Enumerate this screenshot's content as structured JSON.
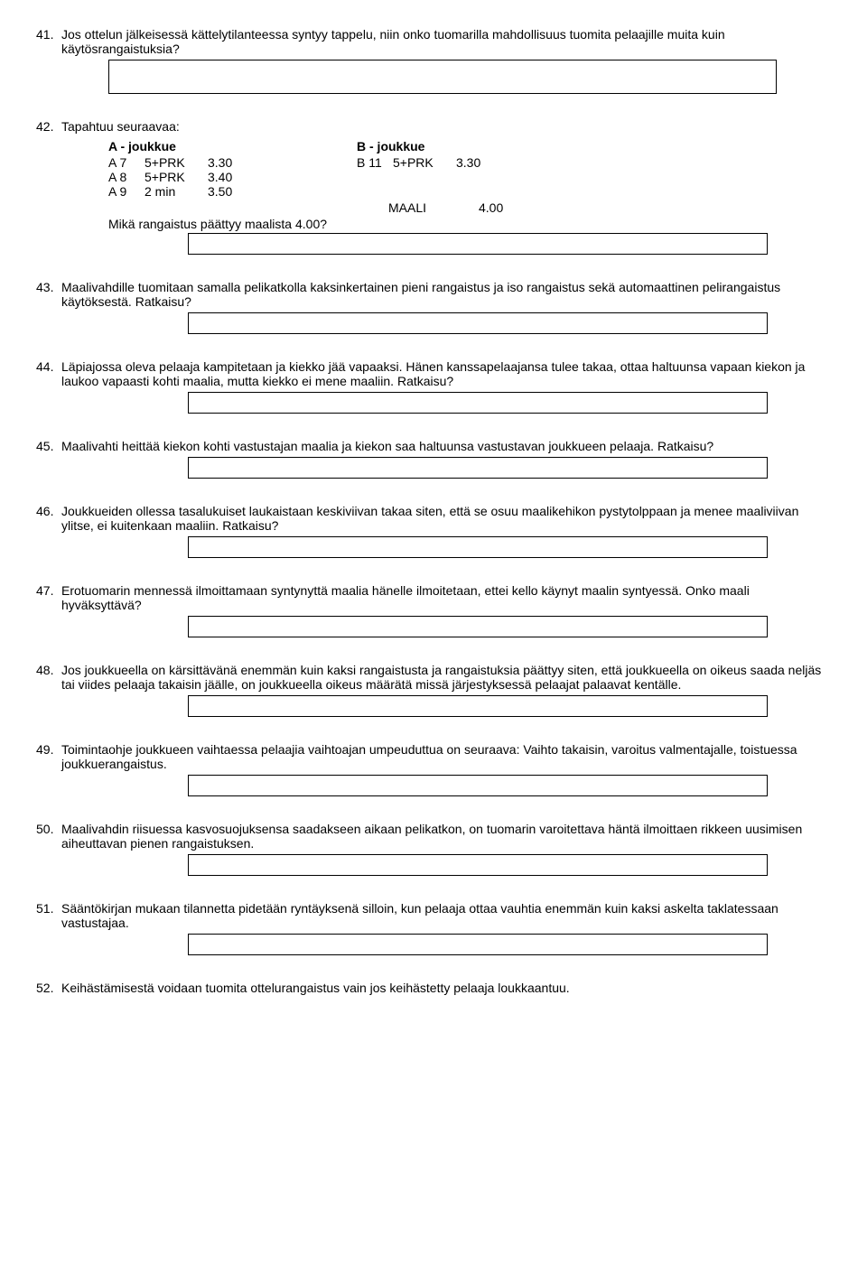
{
  "questions": {
    "q41": {
      "num": "41.",
      "text": "Jos ottelun jälkeisessä kättelytilanteessa syntyy tappelu, niin onko tuomarilla mahdollisuus tuomita pelaajille muita kuin käytösrangaistuksia?"
    },
    "q42": {
      "num": "42.",
      "text": "Tapahtuu seuraavaa:",
      "teamA_header": "A - joukkue",
      "teamB_header": "B - joukkue",
      "a_rows": [
        {
          "c1": "A 7",
          "c2": "5+PRK",
          "c3": "3.30"
        },
        {
          "c1": "A 8",
          "c2": "5+PRK",
          "c3": "3.40"
        },
        {
          "c1": "A 9",
          "c2": "2 min",
          "c3": "3.50"
        }
      ],
      "b_rows": [
        {
          "c1": "B 11",
          "c2": "5+PRK",
          "c3": "3.30"
        }
      ],
      "maali_label": "MAALI",
      "maali_time": "4.00",
      "footer": "Mikä rangaistus päättyy maalista 4.00?"
    },
    "q43": {
      "num": "43.",
      "text": "Maalivahdille tuomitaan samalla pelikatkolla kaksinkertainen pieni rangaistus ja iso rangaistus sekä automaattinen pelirangaistus käytöksestä. Ratkaisu?"
    },
    "q44": {
      "num": "44.",
      "text": "Läpiajossa oleva pelaaja kampitetaan ja kiekko jää vapaaksi. Hänen kanssapelaajansa tulee takaa, ottaa haltuunsa vapaan kiekon ja laukoo vapaasti kohti maalia, mutta kiekko ei mene maaliin. Ratkaisu?"
    },
    "q45": {
      "num": "45.",
      "text": "Maalivahti heittää kiekon kohti vastustajan maalia ja kiekon saa haltuunsa vastustavan joukkueen pelaaja. Ratkaisu?"
    },
    "q46": {
      "num": "46.",
      "text": "Joukkueiden ollessa tasalukuiset laukaistaan keskiviivan takaa siten, että se osuu maalikehikon pystytolppaan ja menee maaliviivan ylitse, ei kuitenkaan maaliin. Ratkaisu?"
    },
    "q47": {
      "num": "47.",
      "text": "Erotuomarin mennessä ilmoittamaan syntynyttä maalia hänelle ilmoitetaan, ettei kello käynyt maalin syntyessä. Onko maali hyväksyttävä?"
    },
    "q48": {
      "num": "48.",
      "text": "Jos joukkueella on kärsittävänä enemmän kuin kaksi rangaistusta ja rangaistuksia päättyy siten, että joukkueella on oikeus saada neljäs tai viides pelaaja takaisin jäälle, on joukkueella oikeus määrätä missä järjestyksessä pelaajat palaavat kentälle."
    },
    "q49": {
      "num": "49.",
      "text": "Toimintaohje joukkueen vaihtaessa pelaajia vaihtoajan umpeuduttua on seuraava: Vaihto takaisin, varoitus valmentajalle, toistuessa joukkuerangaistus."
    },
    "q50": {
      "num": "50.",
      "text": "Maalivahdin riisuessa kasvosuojuksensa saadakseen aikaan pelikatkon, on tuomarin varoitettava häntä ilmoittaen rikkeen uusimisen aiheuttavan pienen rangaistuksen."
    },
    "q51": {
      "num": "51.",
      "text": "Sääntökirjan mukaan tilannetta pidetään ryntäyksenä silloin, kun pelaaja ottaa vauhtia enemmän kuin kaksi askelta taklatessaan vastustajaa."
    },
    "q52": {
      "num": "52.",
      "text": "Keihästämisestä voidaan tuomita ottelurangaistus vain jos keihästetty pelaaja loukkaantuu."
    }
  }
}
